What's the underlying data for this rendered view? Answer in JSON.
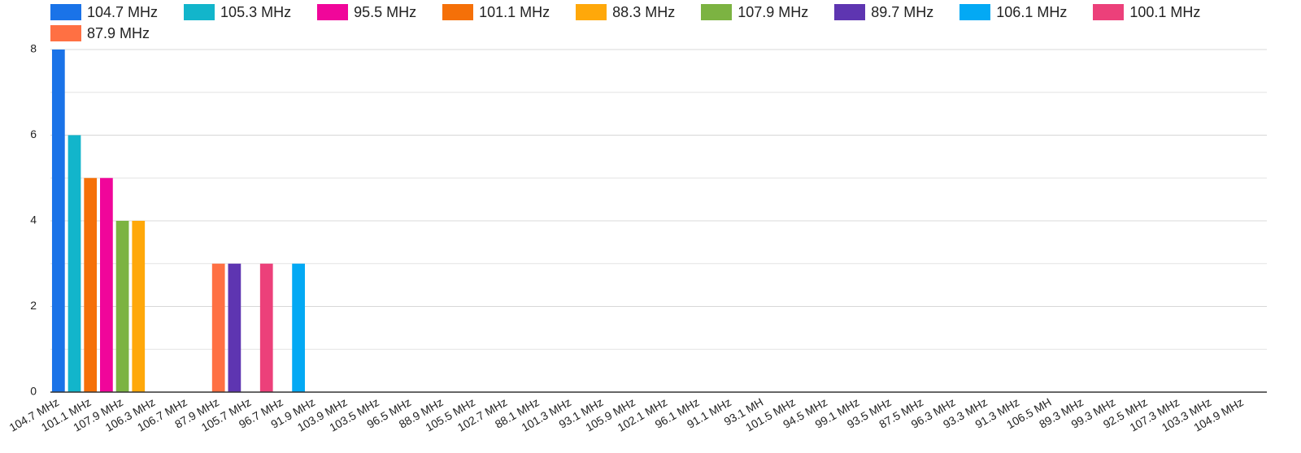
{
  "chart_data": {
    "type": "bar",
    "categories": [
      "104.7 MHz",
      null,
      "101.1 MHz",
      null,
      "107.9 MHz",
      null,
      "106.3 MHz",
      null,
      "106.7 MHz",
      null,
      "87.9 MHz",
      null,
      "105.7 MHz",
      null,
      "96.7 MHz",
      null,
      "91.9 MHz",
      null,
      "103.9 MHz",
      null,
      "103.5 MHz",
      null,
      "96.5 MHz",
      null,
      "88.9 MHz",
      null,
      "105.5 MHz",
      null,
      "102.7 MHz",
      null,
      "88.1 MHz",
      null,
      "101.3 MHz",
      null,
      "93.1 MHz",
      null,
      "105.9 MHz",
      null,
      "102.1 MHz",
      null,
      "96.1 MHz",
      null,
      "91.1 MHz",
      null,
      "93.1 MH",
      null,
      "101.5 MHz",
      null,
      "94.5 MHz",
      null,
      "99.1 MHz",
      null,
      "93.5 MHz",
      null,
      "87.5 MHz",
      null,
      "96.3 MHz",
      null,
      "93.3 MHz",
      null,
      "91.3 MHz",
      null,
      "106.5 MH",
      null,
      "89.3 MHz",
      null,
      "99.3 MHz",
      null,
      "92.5 MHz",
      null,
      "107.3 MHz",
      null,
      "103.3 MHz",
      null,
      "104.9 MHz",
      null
    ],
    "series": [
      {
        "name": "104.7 MHz",
        "color": "#1a73e8",
        "values": [
          8,
          null,
          null,
          null,
          null,
          null,
          null,
          null,
          null,
          null,
          null,
          null,
          null,
          null,
          null,
          null,
          null,
          null,
          null,
          null,
          null,
          null,
          null,
          null,
          null,
          null,
          null,
          null,
          null,
          null,
          null,
          null,
          null,
          null,
          null,
          null,
          null,
          null,
          null,
          null,
          null,
          null,
          null,
          null,
          null,
          null,
          null,
          null,
          null,
          null,
          null,
          null,
          null,
          null,
          null,
          null,
          null,
          null,
          null,
          null,
          null,
          null,
          null,
          null,
          null,
          null,
          null,
          null,
          null,
          null,
          null,
          null,
          null,
          null,
          null,
          null
        ]
      },
      {
        "name": "105.3 MHz",
        "color": "#12b5cb",
        "values": [
          null,
          6,
          null,
          null,
          null,
          null,
          null,
          null,
          null,
          null,
          null,
          null,
          null,
          null,
          null,
          null,
          null,
          null,
          null,
          null,
          null,
          null,
          null,
          null,
          null,
          null,
          null,
          null,
          null,
          null,
          null,
          null,
          null,
          null,
          null,
          null,
          null,
          null,
          null,
          null,
          null,
          null,
          null,
          null,
          null,
          null,
          null,
          null,
          null,
          null,
          null,
          null,
          null,
          null,
          null,
          null,
          null,
          null,
          null,
          null,
          null,
          null,
          null,
          null,
          null,
          null,
          null,
          null,
          null,
          null,
          null,
          null,
          null,
          null,
          null,
          null
        ]
      },
      {
        "name": "95.5 MHz",
        "color": "#f0069a",
        "values": [
          null,
          null,
          null,
          5,
          null,
          null,
          null,
          null,
          null,
          null,
          null,
          null,
          null,
          null,
          null,
          null,
          null,
          null,
          null,
          null,
          null,
          null,
          null,
          null,
          null,
          null,
          null,
          null,
          null,
          null,
          null,
          null,
          null,
          null,
          null,
          null,
          null,
          null,
          null,
          null,
          null,
          null,
          null,
          null,
          null,
          null,
          null,
          null,
          null,
          null,
          null,
          null,
          null,
          null,
          null,
          null,
          null,
          null,
          null,
          null,
          null,
          null,
          null,
          null,
          null,
          null,
          null,
          null,
          null,
          null,
          null,
          null,
          null,
          null,
          null,
          null
        ]
      },
      {
        "name": "101.1 MHz",
        "color": "#f57008",
        "values": [
          null,
          null,
          5,
          null,
          null,
          null,
          null,
          null,
          null,
          null,
          null,
          null,
          null,
          null,
          null,
          null,
          null,
          null,
          null,
          null,
          null,
          null,
          null,
          null,
          null,
          null,
          null,
          null,
          null,
          null,
          null,
          null,
          null,
          null,
          null,
          null,
          null,
          null,
          null,
          null,
          null,
          null,
          null,
          null,
          null,
          null,
          null,
          null,
          null,
          null,
          null,
          null,
          null,
          null,
          null,
          null,
          null,
          null,
          null,
          null,
          null,
          null,
          null,
          null,
          null,
          null,
          null,
          null,
          null,
          null,
          null,
          null,
          null,
          null,
          null,
          null
        ]
      },
      {
        "name": "88.3 MHz",
        "color": "#ffa80a",
        "values": [
          null,
          null,
          null,
          null,
          null,
          4,
          null,
          null,
          null,
          null,
          null,
          null,
          null,
          null,
          null,
          null,
          null,
          null,
          null,
          null,
          null,
          null,
          null,
          null,
          null,
          null,
          null,
          null,
          null,
          null,
          null,
          null,
          null,
          null,
          null,
          null,
          null,
          null,
          null,
          null,
          null,
          null,
          null,
          null,
          null,
          null,
          null,
          null,
          null,
          null,
          null,
          null,
          null,
          null,
          null,
          null,
          null,
          null,
          null,
          null,
          null,
          null,
          null,
          null,
          null,
          null,
          null,
          null,
          null,
          null,
          null,
          null,
          null,
          null,
          null,
          null
        ]
      },
      {
        "name": "107.9 MHz",
        "color": "#7cb342",
        "values": [
          null,
          null,
          null,
          null,
          4,
          null,
          null,
          null,
          null,
          null,
          null,
          null,
          null,
          null,
          null,
          null,
          null,
          null,
          null,
          null,
          null,
          null,
          null,
          null,
          null,
          null,
          null,
          null,
          null,
          null,
          null,
          null,
          null,
          null,
          null,
          null,
          null,
          null,
          null,
          null,
          null,
          null,
          null,
          null,
          null,
          null,
          null,
          null,
          null,
          null,
          null,
          null,
          null,
          null,
          null,
          null,
          null,
          null,
          null,
          null,
          null,
          null,
          null,
          null,
          null,
          null,
          null,
          null,
          null,
          null,
          null,
          null,
          null,
          null,
          null,
          null
        ]
      },
      {
        "name": "89.7 MHz",
        "color": "#5e35b1",
        "values": [
          null,
          null,
          null,
          null,
          null,
          null,
          null,
          null,
          null,
          null,
          null,
          3,
          null,
          null,
          null,
          null,
          null,
          null,
          null,
          null,
          null,
          null,
          null,
          null,
          null,
          null,
          null,
          null,
          null,
          null,
          null,
          null,
          null,
          null,
          null,
          null,
          null,
          null,
          null,
          null,
          null,
          null,
          null,
          null,
          null,
          null,
          null,
          null,
          null,
          null,
          null,
          null,
          null,
          null,
          null,
          null,
          null,
          null,
          null,
          null,
          null,
          null,
          null,
          null,
          null,
          null,
          null,
          null,
          null,
          null,
          null,
          null,
          null,
          null,
          null,
          null
        ]
      },
      {
        "name": "106.1 MHz",
        "color": "#03a9f4",
        "values": [
          null,
          null,
          null,
          null,
          null,
          null,
          null,
          null,
          null,
          null,
          null,
          null,
          null,
          null,
          null,
          3,
          null,
          null,
          null,
          null,
          null,
          null,
          null,
          null,
          null,
          null,
          null,
          null,
          null,
          null,
          null,
          null,
          null,
          null,
          null,
          null,
          null,
          null,
          null,
          null,
          null,
          null,
          null,
          null,
          null,
          null,
          null,
          null,
          null,
          null,
          null,
          null,
          null,
          null,
          null,
          null,
          null,
          null,
          null,
          null,
          null,
          null,
          null,
          null,
          null,
          null,
          null,
          null,
          null,
          null,
          null,
          null,
          null,
          null,
          null,
          null
        ]
      },
      {
        "name": "100.1 MHz",
        "color": "#ec407a",
        "values": [
          null,
          null,
          null,
          null,
          null,
          null,
          null,
          null,
          null,
          null,
          null,
          null,
          null,
          3,
          null,
          null,
          null,
          null,
          null,
          null,
          null,
          null,
          null,
          null,
          null,
          null,
          null,
          null,
          null,
          null,
          null,
          null,
          null,
          null,
          null,
          null,
          null,
          null,
          null,
          null,
          null,
          null,
          null,
          null,
          null,
          null,
          null,
          null,
          null,
          null,
          null,
          null,
          null,
          null,
          null,
          null,
          null,
          null,
          null,
          null,
          null,
          null,
          null,
          null,
          null,
          null,
          null,
          null,
          null,
          null,
          null,
          null,
          null,
          null,
          null,
          null
        ]
      },
      {
        "name": "87.9 MHz",
        "color": "#ff7043",
        "values": [
          null,
          null,
          null,
          null,
          null,
          null,
          null,
          null,
          null,
          null,
          3,
          null,
          null,
          null,
          null,
          null,
          null,
          null,
          null,
          null,
          null,
          null,
          null,
          null,
          null,
          null,
          null,
          null,
          null,
          null,
          null,
          null,
          null,
          null,
          null,
          null,
          null,
          null,
          null,
          null,
          null,
          null,
          null,
          null,
          null,
          null,
          null,
          null,
          null,
          null,
          null,
          null,
          null,
          null,
          null,
          null,
          null,
          null,
          null,
          null,
          null,
          null,
          null,
          null,
          null,
          null,
          null,
          null,
          null,
          null,
          null,
          null,
          null,
          null,
          null,
          null
        ]
      }
    ],
    "ylim": [
      0,
      8
    ],
    "yticks": [
      0,
      2,
      4,
      6,
      8
    ],
    "minor_yticks": [
      1,
      3,
      5,
      7
    ],
    "grid": true,
    "legend": "top"
  }
}
